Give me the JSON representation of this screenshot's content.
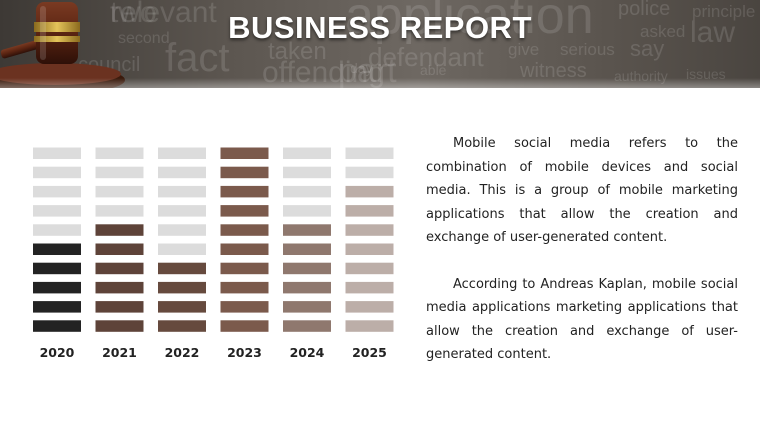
{
  "header": {
    "title": "BUSINESS REPORT",
    "background_words": [
      "relevant",
      "application",
      "police",
      "principle",
      "asked",
      "law",
      "fact",
      "taken",
      "defendant",
      "give",
      "serious",
      "say",
      "council",
      "second",
      "day",
      "able",
      "witness",
      "authority",
      "issues",
      "offending",
      "part",
      "two"
    ]
  },
  "chart_data": {
    "type": "bar",
    "categories": [
      "2020",
      "2021",
      "2022",
      "2023",
      "2024",
      "2025"
    ],
    "values": [
      5,
      6,
      4,
      10,
      6,
      8
    ],
    "max_segments": 10,
    "colors": {
      "empty": "#dcdcdc",
      "series": [
        "#232323",
        "#5e4339",
        "#664a3e",
        "#7b5a4c",
        "#8f786e",
        "#bcaea8"
      ]
    }
  },
  "text": {
    "paragraph1": "Mobile social media refers to the combination of mobile devices and social media. This is a group of mobile marketing applications that allow the creation and exchange of user-generated content.",
    "paragraph2": "According to Andreas Kaplan, mobile social media applications marketing applications that allow the creation and exchange of user-generated content."
  }
}
